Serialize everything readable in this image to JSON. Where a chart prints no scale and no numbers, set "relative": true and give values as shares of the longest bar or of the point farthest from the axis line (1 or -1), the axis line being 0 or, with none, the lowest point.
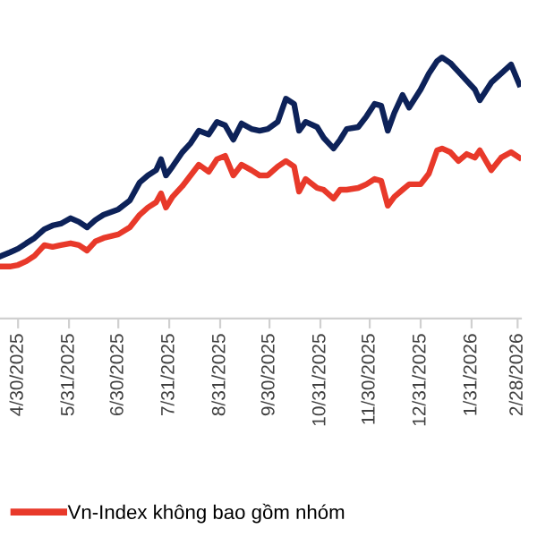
{
  "chart_data": {
    "type": "line",
    "relative": true,
    "x": [
      "2025-04-20",
      "2025-04-25",
      "2025-04-30",
      "2025-05-05",
      "2025-05-10",
      "2025-05-16",
      "2025-05-21",
      "2025-05-26",
      "2025-06-01",
      "2025-06-06",
      "2025-06-11",
      "2025-06-16",
      "2025-06-21",
      "2025-06-30",
      "2025-07-07",
      "2025-07-13",
      "2025-07-18",
      "2025-07-23",
      "2025-07-26",
      "2025-07-29",
      "2025-08-02",
      "2025-08-08",
      "2025-08-13",
      "2025-08-18",
      "2025-08-24",
      "2025-08-29",
      "2025-09-03",
      "2025-09-08",
      "2025-09-13",
      "2025-09-19",
      "2025-09-24",
      "2025-09-29",
      "2025-10-05",
      "2025-10-10",
      "2025-10-15",
      "2025-10-18",
      "2025-10-22",
      "2025-10-29",
      "2025-11-02",
      "2025-11-08",
      "2025-11-12",
      "2025-11-16",
      "2025-11-23",
      "2025-11-28",
      "2025-12-03",
      "2025-12-07",
      "2025-12-11",
      "2025-12-15",
      "2025-12-20",
      "2025-12-24",
      "2025-12-31",
      "2026-01-05",
      "2026-01-10",
      "2026-01-13",
      "2026-01-18",
      "2026-01-23",
      "2026-01-28",
      "2026-02-02",
      "2026-02-05",
      "2026-02-12",
      "2026-02-18",
      "2026-02-24",
      "2026-03-01"
    ],
    "xlim": [
      "2025-04-19",
      "2026-03-02"
    ],
    "xticks": [
      {
        "value": "2025-04-30",
        "label": "4/30/2025"
      },
      {
        "value": "2025-05-31",
        "label": "5/31/2025"
      },
      {
        "value": "2025-06-30",
        "label": "6/30/2025"
      },
      {
        "value": "2025-07-31",
        "label": "7/31/2025"
      },
      {
        "value": "2025-08-31",
        "label": "8/31/2025"
      },
      {
        "value": "2025-09-30",
        "label": "9/30/2025"
      },
      {
        "value": "2025-10-31",
        "label": "10/31/2025"
      },
      {
        "value": "2025-11-30",
        "label": "11/30/2025"
      },
      {
        "value": "2025-12-31",
        "label": "12/31/2025"
      },
      {
        "value": "2026-01-31",
        "label": "1/31/2026"
      },
      {
        "value": "2026-02-28",
        "label": "2/28/2026"
      }
    ],
    "tick_labels": "x",
    "grid": false,
    "legend": "bottom left",
    "line_style": "solid",
    "marker": "none",
    "series": [
      {
        "color": "#0d2259",
        "values": [
          0.24,
          0.253,
          0.267,
          0.288,
          0.308,
          0.342,
          0.356,
          0.363,
          0.384,
          0.37,
          0.349,
          0.377,
          0.397,
          0.418,
          0.452,
          0.521,
          0.548,
          0.568,
          0.61,
          0.548,
          0.582,
          0.637,
          0.671,
          0.719,
          0.705,
          0.753,
          0.74,
          0.685,
          0.747,
          0.726,
          0.719,
          0.726,
          0.753,
          0.842,
          0.822,
          0.719,
          0.753,
          0.733,
          0.692,
          0.651,
          0.685,
          0.726,
          0.733,
          0.774,
          0.822,
          0.815,
          0.719,
          0.788,
          0.856,
          0.808,
          0.877,
          0.938,
          0.986,
          1,
          0.979,
          0.945,
          0.911,
          0.877,
          0.836,
          0.904,
          0.938,
          0.973,
          0.897
        ]
      },
      {
        "name": "Vn-Index không bao gồm nhóm",
        "color": "#e8392a",
        "values": [
          0.199,
          0.199,
          0.205,
          0.219,
          0.24,
          0.281,
          0.274,
          0.281,
          0.288,
          0.281,
          0.26,
          0.295,
          0.308,
          0.322,
          0.349,
          0.397,
          0.425,
          0.445,
          0.479,
          0.425,
          0.466,
          0.507,
          0.548,
          0.589,
          0.562,
          0.61,
          0.623,
          0.548,
          0.589,
          0.568,
          0.548,
          0.548,
          0.582,
          0.603,
          0.582,
          0.486,
          0.534,
          0.5,
          0.493,
          0.459,
          0.493,
          0.493,
          0.5,
          0.514,
          0.534,
          0.527,
          0.432,
          0.466,
          0.493,
          0.514,
          0.514,
          0.555,
          0.644,
          0.651,
          0.637,
          0.603,
          0.63,
          0.616,
          0.644,
          0.568,
          0.616,
          0.637,
          0.616
        ]
      }
    ]
  }
}
